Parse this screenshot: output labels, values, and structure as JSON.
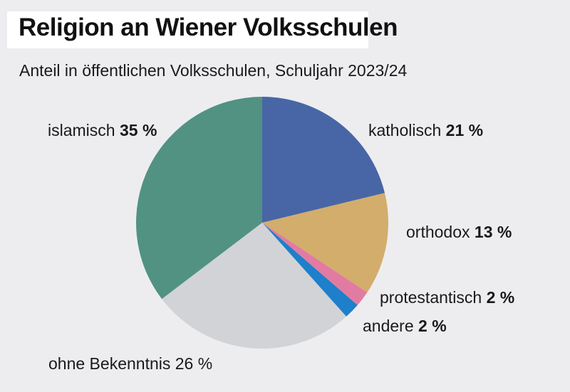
{
  "title": "Religion an Wiener Volksschulen",
  "subtitle": "Anteil in öffentlichen Volksschulen, Schuljahr 2023/24",
  "chart_data": {
    "type": "pie",
    "slices": [
      {
        "label": "katholisch",
        "value": 21,
        "value_label": "21 %",
        "color": "#4866a6"
      },
      {
        "label": "orthodox",
        "value": 13,
        "value_label": "13 %",
        "color": "#d3ad6b"
      },
      {
        "label": "protestantisch",
        "value": 2,
        "value_label": "2 %",
        "color": "#e27ba2"
      },
      {
        "label": "andere",
        "value": 2,
        "value_label": "2 %",
        "color": "#1e7fca"
      },
      {
        "label": "ohne Bekenntnis",
        "value": 26,
        "value_label": "26 %",
        "color": "#d2d3d7"
      },
      {
        "label": "islamisch",
        "value": 35,
        "value_label": "35 %",
        "color": "#519283"
      }
    ]
  }
}
